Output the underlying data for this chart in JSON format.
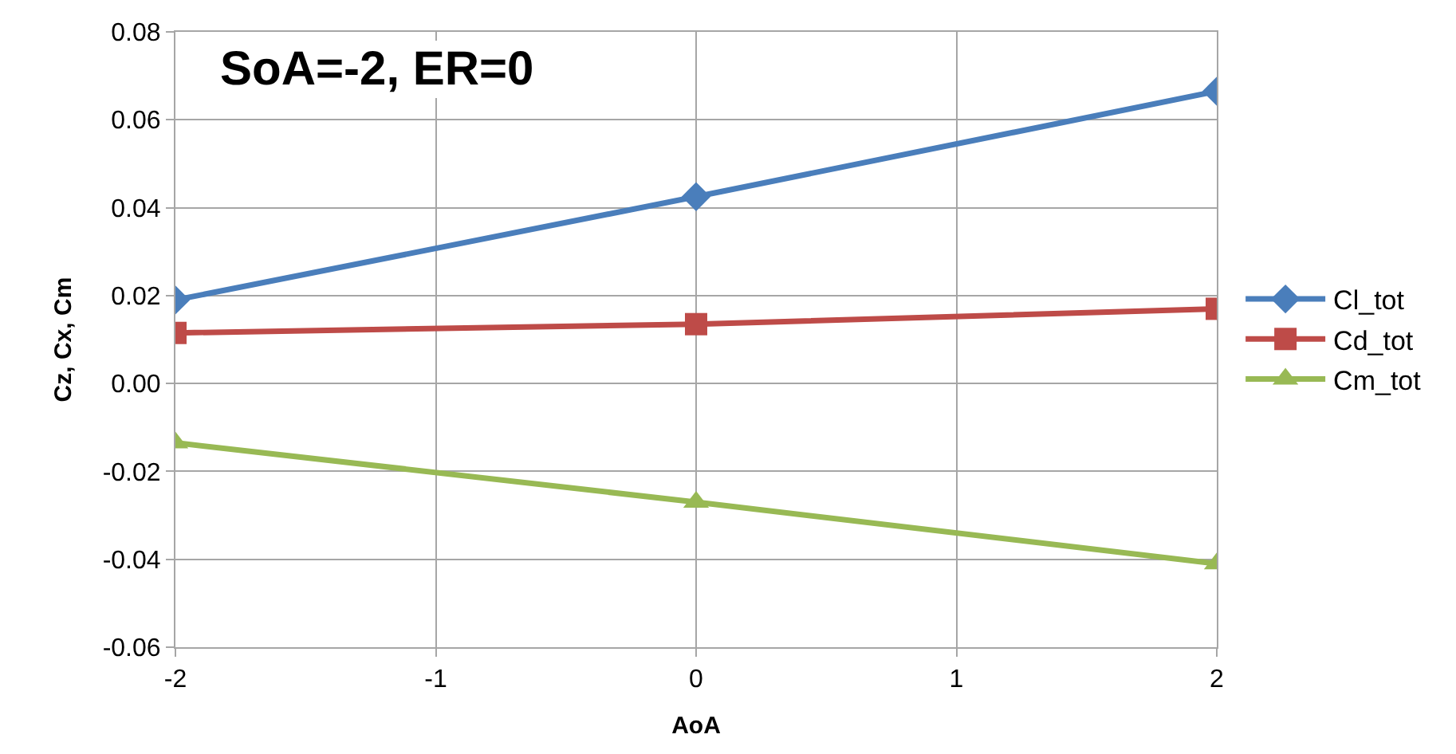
{
  "chart_data": {
    "type": "line",
    "title": "SoA=-2, ER=0",
    "xlabel": "AoA",
    "ylabel": "Cz, Cx, Cm",
    "x": [
      -2,
      0,
      2
    ],
    "series": [
      {
        "name": "Cl_tot",
        "color": "#4a7ebb",
        "marker": "diamond",
        "values": [
          0.019,
          0.0425,
          0.0665
        ]
      },
      {
        "name": "Cd_tot",
        "color": "#be4b48",
        "marker": "square",
        "values": [
          0.0115,
          0.0135,
          0.017
        ]
      },
      {
        "name": "Cm_tot",
        "color": "#98b954",
        "marker": "triangle",
        "values": [
          -0.0135,
          -0.027,
          -0.041
        ]
      }
    ],
    "xlim": [
      -2,
      2
    ],
    "xticks": [
      -2,
      -1,
      0,
      1,
      2
    ],
    "ylim": [
      -0.06,
      0.08
    ],
    "yticks": [
      {
        "value": -0.06,
        "label": "-0.06"
      },
      {
        "value": -0.04,
        "label": "-0.04"
      },
      {
        "value": -0.02,
        "label": "-0.02"
      },
      {
        "value": 0,
        "label": "0.00"
      },
      {
        "value": 0.02,
        "label": "0.02"
      },
      {
        "value": 0.04,
        "label": "0.04"
      },
      {
        "value": 0.06,
        "label": "0.06"
      },
      {
        "value": 0.08,
        "label": "0.08"
      }
    ],
    "grid": true,
    "legend": "right",
    "line_style": "solid"
  }
}
